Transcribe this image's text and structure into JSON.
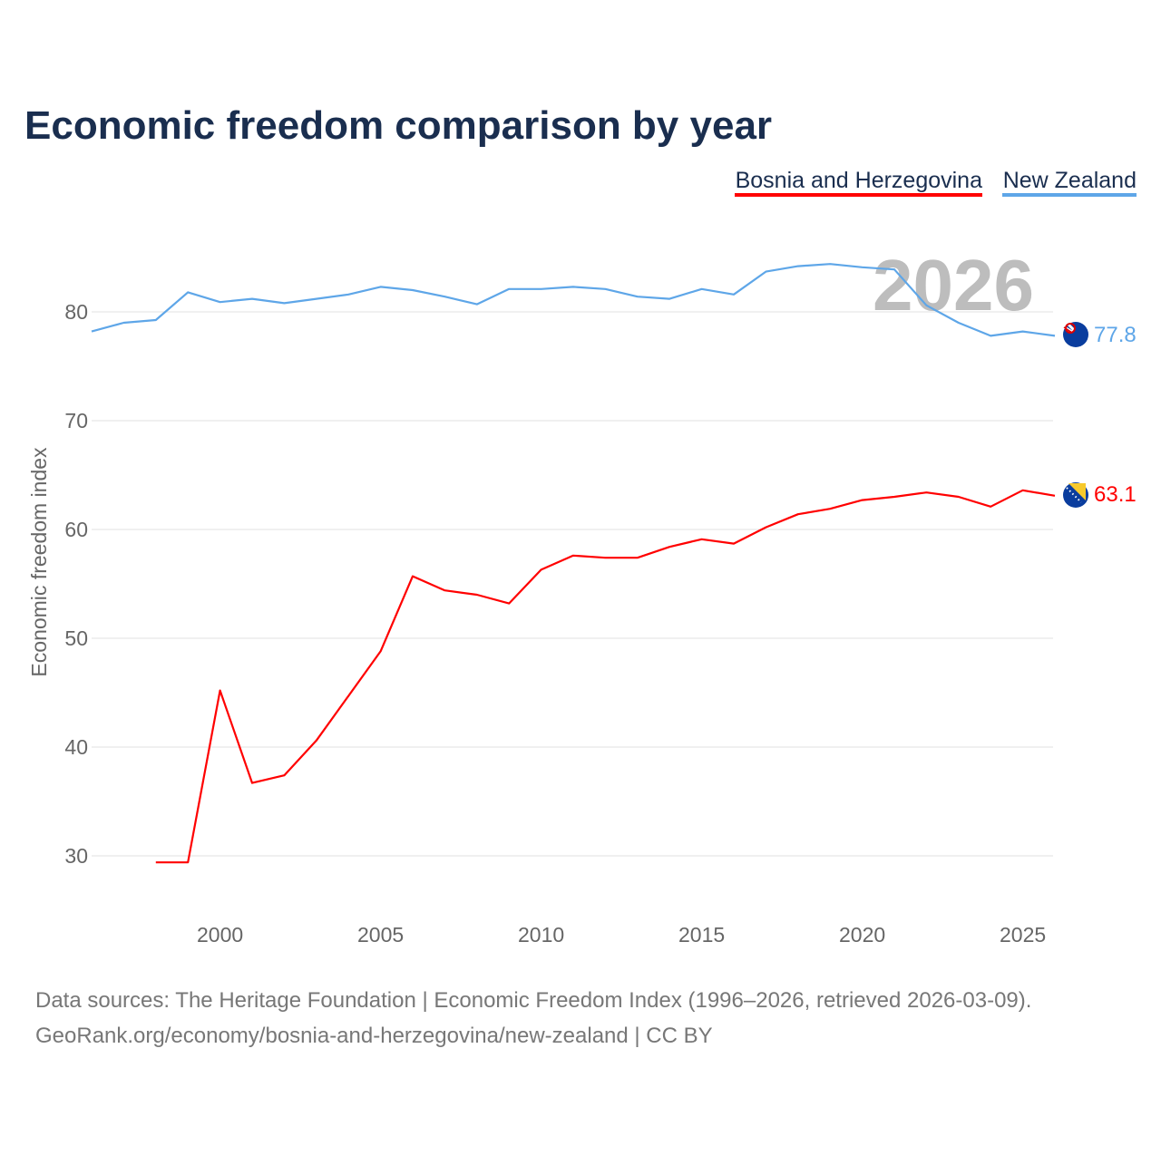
{
  "chart_data": {
    "type": "line",
    "title": "Economic freedom comparison by year",
    "xlabel": "",
    "ylabel": "Economic freedom index",
    "xlim": [
      1996,
      2026
    ],
    "ylim": [
      24.5,
      88
    ],
    "xticks": [
      2000,
      2005,
      2010,
      2015,
      2020,
      2025
    ],
    "yticks": [
      30,
      40,
      50,
      60,
      70,
      80
    ],
    "grid": true,
    "legend_position": "top-right",
    "year_watermark": "2026",
    "series": [
      {
        "name": "Bosnia and Herzegovina",
        "color": "#ff0000",
        "end_label": "63.1",
        "flag": "bosnia-flag",
        "x": [
          1998,
          1999,
          2000,
          2001,
          2002,
          2003,
          2004,
          2005,
          2006,
          2007,
          2008,
          2009,
          2010,
          2011,
          2012,
          2013,
          2014,
          2015,
          2016,
          2017,
          2018,
          2019,
          2020,
          2021,
          2022,
          2023,
          2024,
          2025,
          2026
        ],
        "values": [
          29.4,
          29.4,
          45.2,
          36.7,
          37.4,
          40.6,
          44.7,
          48.8,
          55.7,
          54.4,
          54.0,
          53.2,
          56.3,
          57.6,
          57.4,
          57.4,
          58.4,
          59.1,
          58.7,
          60.2,
          61.4,
          61.9,
          62.7,
          63.0,
          63.4,
          63.0,
          62.1,
          63.6,
          63.1
        ]
      },
      {
        "name": "New Zealand",
        "color": "#5ea6e8",
        "end_label": "77.8",
        "flag": "new-zealand-flag",
        "x": [
          1996,
          1997,
          1998,
          1999,
          2000,
          2001,
          2002,
          2003,
          2004,
          2005,
          2006,
          2007,
          2008,
          2009,
          2010,
          2011,
          2012,
          2013,
          2014,
          2015,
          2016,
          2017,
          2018,
          2019,
          2020,
          2021,
          2022,
          2023,
          2024,
          2025,
          2026
        ],
        "values": [
          78.2,
          79.0,
          79.25,
          81.8,
          80.9,
          81.2,
          80.8,
          81.2,
          81.6,
          82.3,
          82.0,
          81.4,
          80.7,
          82.1,
          82.1,
          82.3,
          82.1,
          81.4,
          81.2,
          82.1,
          81.6,
          83.7,
          84.2,
          84.4,
          84.1,
          83.9,
          80.6,
          79.0,
          77.8,
          78.2,
          77.8
        ]
      }
    ]
  },
  "footer": {
    "line1": "Data sources: The Heritage Foundation | Economic Freedom Index (1996–2026, retrieved 2026-03-09).",
    "line2": "GeoRank.org/economy/bosnia-and-herzegovina/new-zealand | CC BY"
  }
}
